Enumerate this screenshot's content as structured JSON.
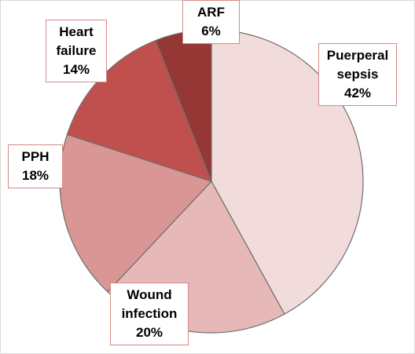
{
  "chart_data": {
    "type": "pie",
    "categories": [
      "Puerperal sepsis",
      "Wound infection",
      "PPH",
      "Heart failure",
      "ARF"
    ],
    "values": [
      42,
      20,
      18,
      14,
      6
    ],
    "value_labels": [
      "42%",
      "20%",
      "18%",
      "14%",
      "6%"
    ],
    "colors": [
      "#f2dcdb",
      "#e6b9b8",
      "#d99694",
      "#c0504d",
      "#953735"
    ]
  }
}
